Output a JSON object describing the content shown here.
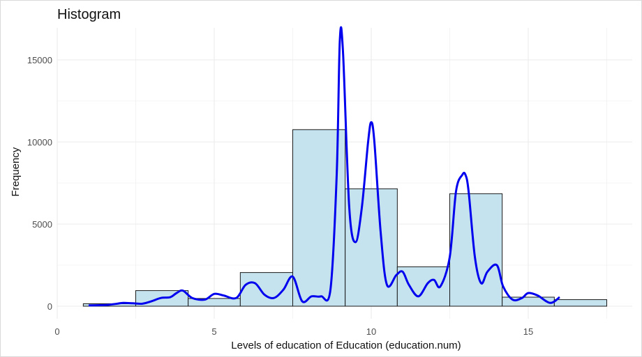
{
  "chart_data": {
    "type": "bar",
    "title": "Histogram",
    "xlabel": "Levels of education of Education (education.num)",
    "ylabel": "Frequency",
    "xlim": [
      0,
      18
    ],
    "ylim": [
      0,
      16500
    ],
    "x_ticks": [
      0,
      5,
      10,
      15
    ],
    "y_ticks": [
      0,
      5000,
      10000,
      15000
    ],
    "grid": true,
    "legend": "none",
    "bins": [
      {
        "x0": 0.83,
        "x1": 2.5,
        "value": 150
      },
      {
        "x0": 2.5,
        "x1": 4.17,
        "value": 950
      },
      {
        "x0": 4.17,
        "x1": 5.83,
        "value": 470
      },
      {
        "x0": 5.83,
        "x1": 7.5,
        "value": 2050
      },
      {
        "x0": 7.5,
        "x1": 9.17,
        "value": 10750
      },
      {
        "x0": 9.17,
        "x1": 10.83,
        "value": 7150
      },
      {
        "x0": 10.83,
        "x1": 12.5,
        "value": 2400
      },
      {
        "x0": 12.5,
        "x1": 14.17,
        "value": 6850
      },
      {
        "x0": 14.17,
        "x1": 15.83,
        "value": 550
      },
      {
        "x0": 15.83,
        "x1": 17.5,
        "value": 400
      }
    ],
    "density_line": {
      "x": [
        1.0,
        1.3,
        1.6,
        1.9,
        2.1,
        2.4,
        2.7,
        3.0,
        3.3,
        3.6,
        3.8,
        4.0,
        4.3,
        4.7,
        5.0,
        5.3,
        5.7,
        6.0,
        6.3,
        6.6,
        6.9,
        7.2,
        7.5,
        7.8,
        8.1,
        8.4,
        8.7,
        8.9,
        9.0,
        9.1,
        9.3,
        9.5,
        9.7,
        9.9,
        10.0,
        10.1,
        10.3,
        10.5,
        10.8,
        11.0,
        11.2,
        11.5,
        11.8,
        12.0,
        12.2,
        12.5,
        12.7,
        12.9,
        13.0,
        13.1,
        13.3,
        13.5,
        13.7,
        14.0,
        14.2,
        14.5,
        14.8,
        15.0,
        15.3,
        15.7,
        16.0
      ],
      "y": [
        50,
        60,
        80,
        150,
        200,
        180,
        150,
        300,
        500,
        550,
        800,
        950,
        500,
        400,
        750,
        650,
        500,
        1300,
        1400,
        700,
        500,
        1000,
        1800,
        300,
        600,
        600,
        1000,
        8000,
        16200,
        15500,
        6000,
        3900,
        6000,
        10000,
        11200,
        10000,
        4500,
        1300,
        1900,
        2100,
        1300,
        600,
        1400,
        1600,
        1200,
        3000,
        7000,
        8000,
        8000,
        7000,
        3000,
        1400,
        2100,
        2500,
        1200,
        400,
        500,
        800,
        650,
        200,
        550
      ]
    },
    "colors": {
      "bar_fill": "#c5e3ee",
      "bar_stroke": "#1a1a1a",
      "line": "#0000ee",
      "grid": "#ebebeb"
    }
  }
}
